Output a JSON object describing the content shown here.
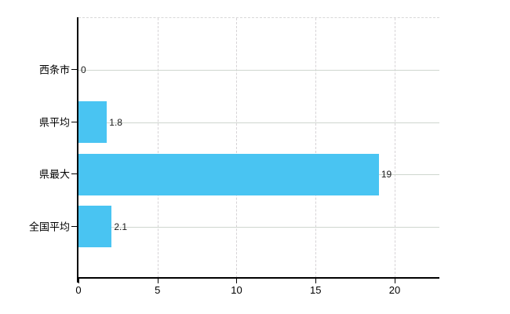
{
  "chart_data": {
    "type": "bar",
    "orientation": "horizontal",
    "title": "",
    "xlabel": "",
    "ylabel": "",
    "categories": [
      "西条市",
      "県平均",
      "県最大",
      "全国平均"
    ],
    "values": [
      0,
      1.8,
      19,
      2.1
    ],
    "value_labels": [
      "0",
      "1.8",
      "19",
      "2.1"
    ],
    "x_tick_labels": [
      "0",
      "5",
      "10",
      "15",
      "20"
    ],
    "x_tick_values": [
      0,
      5,
      10,
      15,
      20
    ],
    "xlim": [
      0,
      22.83
    ],
    "bar_color": "#49c4f2",
    "axis_color": "#000000",
    "h_grid_color": "#cfd6cf",
    "v_grid_color": "#d6d3d6",
    "grid": true,
    "legend_position": "none"
  }
}
